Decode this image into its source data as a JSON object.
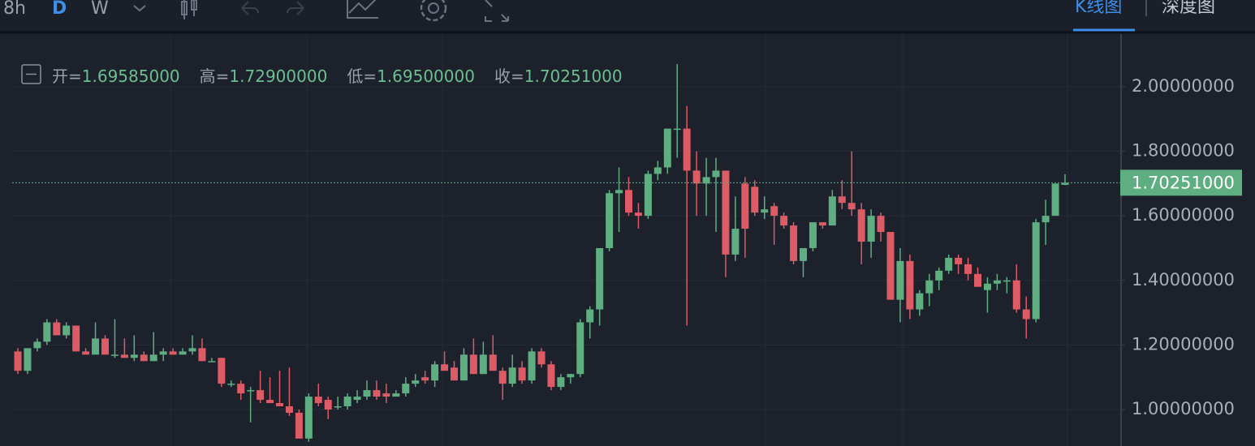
{
  "toolbar": {
    "intervals": [
      "8h",
      "D",
      "W"
    ],
    "tabs": [
      "K线图",
      "深度图"
    ]
  },
  "ohlc_info": [
    {
      "label": "开=",
      "value": "1.69585000"
    },
    {
      "label": "高=",
      "value": "1.72900000"
    },
    {
      "label": "低=",
      "value": "1.69500000"
    },
    {
      "label": "收=",
      "value": "1.70251000"
    }
  ],
  "chart_data": {
    "type": "candlestick",
    "up_color": "#5fae82",
    "down_color": "#dc5b64",
    "grid": true,
    "ylim": [
      0.887,
      2.163
    ],
    "yticks": [
      {
        "value": 1.0,
        "label": "1.00000000"
      },
      {
        "value": 1.2,
        "label": "1.20000000"
      },
      {
        "value": 1.4,
        "label": "1.40000000"
      },
      {
        "value": 1.6,
        "label": "1.60000000"
      },
      {
        "value": 1.8,
        "label": "1.80000000"
      },
      {
        "value": 2.0,
        "label": "2.00000000"
      }
    ],
    "last_price": {
      "value": 1.70251,
      "label": "1.70251000"
    },
    "open": [
      1.18,
      1.12,
      1.19,
      1.21,
      1.27,
      1.23,
      1.26,
      1.18,
      1.17,
      1.22,
      1.17,
      1.17,
      1.16,
      1.17,
      1.15,
      1.17,
      1.18,
      1.17,
      1.18,
      1.19,
      1.15,
      1.16,
      1.08,
      1.08,
      1.06,
      1.06,
      1.03,
      1.02,
      1.01,
      0.99,
      0.91,
      1.04,
      1.03,
      1.01,
      1.01,
      1.03,
      1.04,
      1.06,
      1.05,
      1.04,
      1.05,
      1.08,
      1.1,
      1.09,
      1.14,
      1.13,
      1.09,
      1.17,
      1.11,
      1.17,
      1.12,
      1.08,
      1.13,
      1.09,
      1.18,
      1.14,
      1.07,
      1.1,
      1.11,
      1.27,
      1.31,
      1.5,
      1.67,
      1.68,
      1.61,
      1.6,
      1.73,
      1.75,
      1.87,
      1.87,
      1.74,
      1.7,
      1.72,
      1.74,
      1.48,
      1.7,
      1.69,
      1.61,
      1.63,
      1.6,
      1.57,
      1.46,
      1.5,
      1.58,
      1.57,
      1.66,
      1.64,
      1.62,
      1.52,
      1.6,
      1.55,
      1.34,
      1.46,
      1.31,
      1.36,
      1.4,
      1.43,
      1.47,
      1.45,
      1.42,
      1.37,
      1.39,
      1.4,
      1.4,
      1.31,
      1.28,
      1.58,
      1.6,
      1.69585
    ],
    "high": [
      1.19,
      1.19,
      1.22,
      1.28,
      1.28,
      1.27,
      1.26,
      1.19,
      1.27,
      1.23,
      1.28,
      1.22,
      1.23,
      1.18,
      1.24,
      1.19,
      1.19,
      1.19,
      1.23,
      1.22,
      1.16,
      1.16,
      1.09,
      1.09,
      1.07,
      1.12,
      1.1,
      1.12,
      1.13,
      1.0,
      1.05,
      1.08,
      1.04,
      1.04,
      1.05,
      1.06,
      1.09,
      1.09,
      1.08,
      1.06,
      1.1,
      1.11,
      1.12,
      1.15,
      1.18,
      1.15,
      1.19,
      1.22,
      1.21,
      1.23,
      1.13,
      1.17,
      1.15,
      1.19,
      1.19,
      1.15,
      1.11,
      1.11,
      1.28,
      1.32,
      1.5,
      1.68,
      1.75,
      1.72,
      1.64,
      1.74,
      1.77,
      1.87,
      2.07,
      1.94,
      1.8,
      1.78,
      1.78,
      1.74,
      1.66,
      1.72,
      1.71,
      1.66,
      1.64,
      1.61,
      1.58,
      1.5,
      1.58,
      1.58,
      1.68,
      1.71,
      1.8,
      1.64,
      1.62,
      1.61,
      1.55,
      1.5,
      1.48,
      1.37,
      1.42,
      1.44,
      1.48,
      1.48,
      1.47,
      1.44,
      1.41,
      1.42,
      1.41,
      1.45,
      1.35,
      1.59,
      1.65,
      1.7,
      1.729
    ],
    "low": [
      1.11,
      1.11,
      1.18,
      1.2,
      1.23,
      1.22,
      1.18,
      1.17,
      1.17,
      1.17,
      1.16,
      1.16,
      1.15,
      1.15,
      1.15,
      1.15,
      1.17,
      1.17,
      1.17,
      1.15,
      1.15,
      1.07,
      1.07,
      1.03,
      0.96,
      1.02,
      1.02,
      1.01,
      0.98,
      0.91,
      0.9,
      1.01,
      0.97,
      1.0,
      1.0,
      1.02,
      1.03,
      1.03,
      1.02,
      1.04,
      1.04,
      1.07,
      1.08,
      1.07,
      1.12,
      1.09,
      1.09,
      1.11,
      1.11,
      1.12,
      1.03,
      1.07,
      1.08,
      1.08,
      1.13,
      1.06,
      1.06,
      1.08,
      1.1,
      1.22,
      1.26,
      1.49,
      1.55,
      1.6,
      1.56,
      1.59,
      1.71,
      1.73,
      1.78,
      1.26,
      1.6,
      1.6,
      1.55,
      1.41,
      1.46,
      1.47,
      1.6,
      1.59,
      1.51,
      1.56,
      1.45,
      1.41,
      1.49,
      1.56,
      1.57,
      1.62,
      1.6,
      1.45,
      1.47,
      1.52,
      1.34,
      1.27,
      1.28,
      1.29,
      1.32,
      1.37,
      1.42,
      1.42,
      1.4,
      1.38,
      1.3,
      1.37,
      1.36,
      1.3,
      1.22,
      1.27,
      1.51,
      1.6,
      1.695
    ],
    "close": [
      1.12,
      1.19,
      1.21,
      1.27,
      1.23,
      1.26,
      1.18,
      1.17,
      1.22,
      1.17,
      1.17,
      1.16,
      1.17,
      1.15,
      1.17,
      1.18,
      1.17,
      1.18,
      1.19,
      1.15,
      1.15,
      1.08,
      1.08,
      1.05,
      1.06,
      1.03,
      1.02,
      1.01,
      0.99,
      0.91,
      1.04,
      1.02,
      1.0,
      1.01,
      1.04,
      1.04,
      1.06,
      1.04,
      1.04,
      1.05,
      1.08,
      1.09,
      1.09,
      1.14,
      1.12,
      1.09,
      1.17,
      1.11,
      1.17,
      1.12,
      1.08,
      1.13,
      1.09,
      1.18,
      1.14,
      1.07,
      1.1,
      1.11,
      1.27,
      1.31,
      1.5,
      1.67,
      1.68,
      1.61,
      1.6,
      1.73,
      1.75,
      1.87,
      1.87,
      1.74,
      1.7,
      1.72,
      1.74,
      1.48,
      1.56,
      1.56,
      1.61,
      1.62,
      1.6,
      1.57,
      1.46,
      1.5,
      1.58,
      1.57,
      1.66,
      1.64,
      1.62,
      1.52,
      1.6,
      1.55,
      1.34,
      1.46,
      1.31,
      1.36,
      1.4,
      1.43,
      1.47,
      1.45,
      1.42,
      1.38,
      1.39,
      1.4,
      1.4,
      1.31,
      1.28,
      1.58,
      1.6,
      1.7,
      1.70251
    ]
  }
}
